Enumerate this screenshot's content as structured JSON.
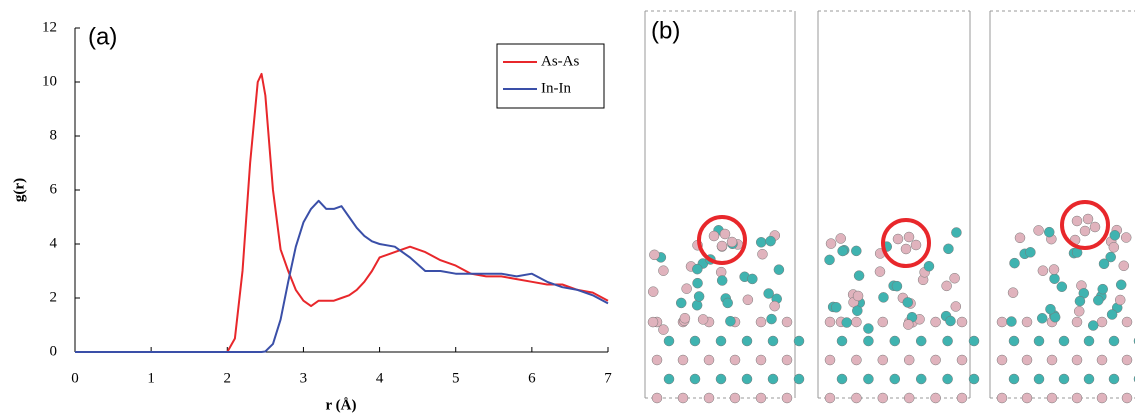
{
  "chart_data": {
    "type": "line",
    "panel_label": "(a)",
    "x_label": "r (Å)",
    "y_label": "g(r)",
    "x": [
      0,
      1,
      2.0,
      2.1,
      2.2,
      2.3,
      2.4,
      2.45,
      2.5,
      2.6,
      2.7,
      2.8,
      2.9,
      3.0,
      3.1,
      3.2,
      3.3,
      3.4,
      3.5,
      3.6,
      3.7,
      3.8,
      3.9,
      4.0,
      4.2,
      4.4,
      4.6,
      4.8,
      5.0,
      5.2,
      5.4,
      5.6,
      5.8,
      6.0,
      6.2,
      6.4,
      6.6,
      6.8,
      7.0
    ],
    "series": [
      {
        "name": "As-As",
        "color": "#e8272b",
        "values": [
          0,
          0,
          0,
          0.5,
          3,
          7,
          10,
          10.3,
          9.5,
          6,
          3.8,
          3,
          2.3,
          1.9,
          1.7,
          1.9,
          1.9,
          1.9,
          2.0,
          2.1,
          2.3,
          2.6,
          3.0,
          3.5,
          3.7,
          3.9,
          3.7,
          3.4,
          3.2,
          2.9,
          2.8,
          2.8,
          2.7,
          2.6,
          2.5,
          2.5,
          2.3,
          2.2,
          1.9
        ]
      },
      {
        "name": "In-In",
        "color": "#3a4fa8",
        "values": [
          0,
          0,
          0,
          0,
          0,
          0,
          0,
          0,
          0.02,
          0.3,
          1.2,
          2.6,
          3.9,
          4.8,
          5.3,
          5.6,
          5.3,
          5.3,
          5.4,
          5.0,
          4.6,
          4.3,
          4.1,
          4.0,
          3.9,
          3.5,
          3.0,
          3.0,
          2.9,
          2.9,
          2.9,
          2.9,
          2.8,
          2.9,
          2.6,
          2.4,
          2.3,
          2.1,
          1.8
        ]
      }
    ],
    "xlim": [
      0,
      7
    ],
    "xticks": [
      0,
      1,
      2,
      3,
      4,
      5,
      6,
      7
    ],
    "ylim": [
      0,
      12
    ],
    "yticks": [
      0,
      2,
      4,
      6,
      8,
      10,
      12
    ],
    "legend": "upper right"
  },
  "panel_b": {
    "label": "(b)"
  }
}
